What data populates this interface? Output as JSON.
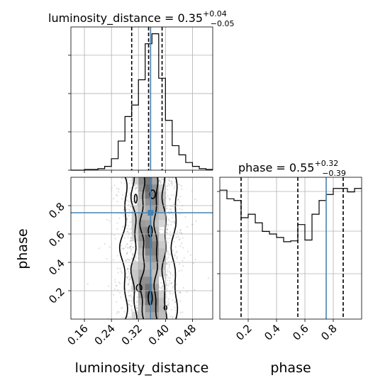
{
  "chart_data": {
    "type": "corner",
    "panels": [
      {
        "kind": "hist1d",
        "param": "luminosity_distance",
        "title_main": "luminosity_distance = 0.35",
        "title_sup": "+0.04",
        "title_sub": "−0.05",
        "xlim": [
          0.12,
          0.54
        ],
        "bins": [
          0.12,
          0.14,
          0.16,
          0.18,
          0.2,
          0.22,
          0.24,
          0.26,
          0.28,
          0.3,
          0.32,
          0.34,
          0.36,
          0.38,
          0.4,
          0.42,
          0.44,
          0.46,
          0.48,
          0.5,
          0.52,
          0.54
        ],
        "counts": [
          0,
          0,
          1,
          1,
          2,
          5,
          15,
          38,
          70,
          85,
          118,
          165,
          178,
          120,
          65,
          32,
          20,
          10,
          5,
          2,
          1
        ],
        "quantiles": [
          0.3,
          0.35,
          0.39
        ],
        "truth": 0.356
      },
      {
        "kind": "hist1d",
        "param": "phase",
        "title_main": "phase = 0.55",
        "title_sup": "+0.32",
        "title_sub": "−0.39",
        "xlim": [
          0.0,
          1.0
        ],
        "bins": [
          0.0,
          0.05,
          0.1,
          0.15,
          0.2,
          0.25,
          0.3,
          0.35,
          0.4,
          0.45,
          0.5,
          0.55,
          0.6,
          0.65,
          0.7,
          0.75,
          0.8,
          0.85,
          0.9,
          0.95,
          1.0
        ],
        "counts": [
          150,
          140,
          138,
          118,
          122,
          112,
          102,
          99,
          95,
          90,
          91,
          110,
          92,
          122,
          138,
          145,
          152,
          152,
          148,
          152
        ],
        "quantiles": [
          0.15,
          0.55,
          0.87
        ],
        "truth": 0.75
      },
      {
        "kind": "hist2d",
        "xparam": "luminosity_distance",
        "yparam": "phase",
        "xlim": [
          0.12,
          0.54
        ],
        "ylim": [
          0.0,
          1.0
        ],
        "truth": [
          0.356,
          0.75
        ],
        "xticks": [
          "0.16",
          "0.24",
          "0.32",
          "0.40",
          "0.48"
        ],
        "yticks": [
          "0.2",
          "0.4",
          "0.6",
          "0.8"
        ],
        "xlabel": "luminosity_distance",
        "ylabel": "phase"
      }
    ],
    "phase_xticks": [
      "0.2",
      "0.4",
      "0.6",
      "0.8"
    ],
    "phase_xlabel": "phase",
    "grid": true,
    "truth_color": "#4682b4",
    "hist_color": "#000000"
  }
}
